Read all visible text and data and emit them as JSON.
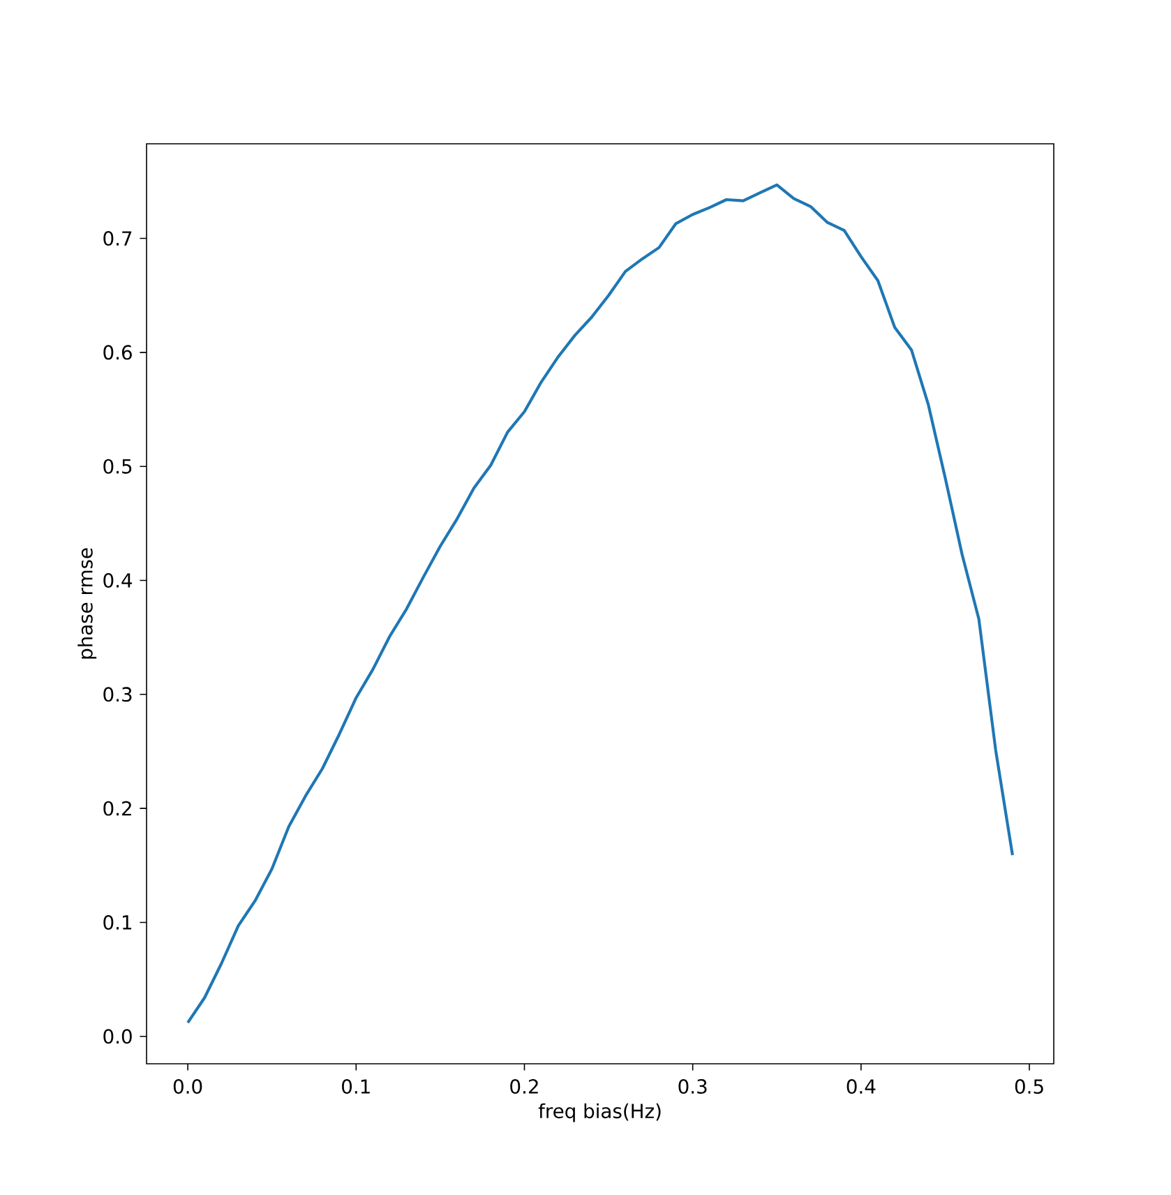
{
  "chart_data": {
    "type": "line",
    "xlabel": "freq bias(Hz)",
    "ylabel": "phase rmse",
    "color": "#1f77b4",
    "x": [
      0.0,
      0.01,
      0.02,
      0.03,
      0.04,
      0.05,
      0.06,
      0.07,
      0.08,
      0.09,
      0.1,
      0.11,
      0.12,
      0.13,
      0.14,
      0.15,
      0.16,
      0.17,
      0.18,
      0.19,
      0.2,
      0.21,
      0.22,
      0.23,
      0.24,
      0.25,
      0.26,
      0.27,
      0.28,
      0.29,
      0.3,
      0.31,
      0.32,
      0.33,
      0.34,
      0.35,
      0.36,
      0.37,
      0.38,
      0.39,
      0.4,
      0.41,
      0.42,
      0.43,
      0.44,
      0.45,
      0.46,
      0.47,
      0.48,
      0.49
    ],
    "values": [
      0.012,
      0.034,
      0.064,
      0.097,
      0.119,
      0.147,
      0.184,
      0.211,
      0.235,
      0.265,
      0.297,
      0.322,
      0.351,
      0.375,
      0.403,
      0.43,
      0.454,
      0.481,
      0.501,
      0.53,
      0.548,
      0.574,
      0.596,
      0.615,
      0.631,
      0.65,
      0.671,
      0.682,
      0.692,
      0.713,
      0.721,
      0.727,
      0.734,
      0.733,
      0.74,
      0.747,
      0.735,
      0.728,
      0.714,
      0.707,
      0.684,
      0.663,
      0.622,
      0.602,
      0.554,
      0.49,
      0.423,
      0.366,
      0.251,
      0.159
    ],
    "xlim": [
      -0.0245,
      0.5145
    ],
    "ylim": [
      -0.024,
      0.783
    ],
    "xticks": [
      {
        "value": 0,
        "label": "0.0"
      },
      0.1,
      0.2,
      0.3,
      0.4,
      0.5
    ],
    "yticks": [
      {
        "value": 0,
        "label": "0.0"
      },
      0.1,
      0.2,
      0.3,
      0.4,
      0.5,
      0.6,
      0.7
    ]
  }
}
